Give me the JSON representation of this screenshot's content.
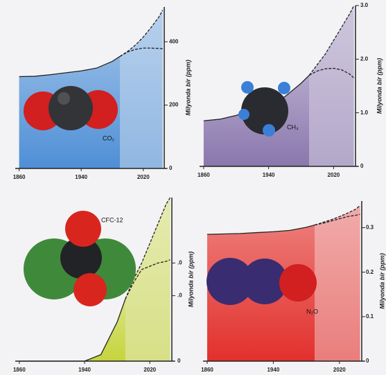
{
  "chart_data": [
    {
      "type": "area",
      "label": "CO₂",
      "y_label": "Milyonda bir (ppm)",
      "color": "#4f8fd6",
      "xlim": [
        1855,
        2047
      ],
      "ylim": [
        0,
        510
      ],
      "xticks": [
        1860,
        1940,
        2020
      ],
      "yticks": [
        0,
        200,
        400
      ],
      "x": [
        1860,
        1880,
        1900,
        1920,
        1940,
        1960,
        1980,
        1990,
        2000,
        2010,
        2020,
        2030,
        2040,
        2045
      ],
      "series": [
        {
          "values": [
            290,
            291,
            296,
            302,
            308,
            317,
            338,
            354,
            null,
            null,
            null,
            null,
            null,
            null
          ]
        },
        {
          "values": [
            null,
            null,
            null,
            null,
            null,
            null,
            null,
            354,
            370,
            390,
            415,
            445,
            478,
            500
          ],
          "dashed": true
        },
        {
          "values": [
            null,
            null,
            null,
            null,
            null,
            null,
            null,
            354,
            368,
            376,
            380,
            380,
            379,
            378
          ],
          "dashed": true
        }
      ]
    },
    {
      "type": "area",
      "label": "CH₄",
      "y_label": "Milyonda bir (ppm)",
      "color": "#8a77ad",
      "xlim": [
        1855,
        2047
      ],
      "ylim": [
        0,
        3.0
      ],
      "xticks": [
        1860,
        1940,
        2020
      ],
      "yticks": [
        0,
        {
          "value": 1,
          "label": "1.0"
        },
        {
          "value": 2,
          "label": "2.0"
        },
        {
          "value": 3,
          "label": "3.0"
        }
      ],
      "x": [
        1860,
        1880,
        1900,
        1920,
        1940,
        1960,
        1980,
        1990,
        2000,
        2010,
        2020,
        2030,
        2040,
        2045
      ],
      "series": [
        {
          "values": [
            0.85,
            0.88,
            0.95,
            1.05,
            1.15,
            1.3,
            1.55,
            1.7,
            null,
            null,
            null,
            null,
            null,
            null
          ]
        },
        {
          "values": [
            null,
            null,
            null,
            null,
            null,
            null,
            null,
            1.7,
            1.9,
            2.1,
            2.35,
            2.6,
            2.85,
            3.0
          ],
          "dashed": true
        },
        {
          "values": [
            null,
            null,
            null,
            null,
            null,
            null,
            null,
            1.7,
            1.78,
            1.82,
            1.83,
            1.8,
            1.72,
            1.65
          ],
          "dashed": true
        }
      ]
    },
    {
      "type": "area",
      "label": "CFC-12",
      "y_label": "Milyonda bir (ppm)",
      "color": "#c5d43c",
      "xlim": [
        1855,
        2047
      ],
      "ylim": [
        0,
        5
      ],
      "xticks": [
        1860,
        1940,
        2020
      ],
      "yticks": [
        0,
        {
          "value": 2,
          "label": ".0"
        },
        {
          "value": 3,
          "label": ".0"
        }
      ],
      "x": [
        1860,
        1880,
        1900,
        1920,
        1940,
        1960,
        1980,
        1990,
        2000,
        2010,
        2020,
        2030,
        2040,
        2045
      ],
      "series": [
        {
          "values": [
            0,
            0,
            0,
            0,
            0,
            0.2,
            1.2,
            1.9,
            null,
            null,
            null,
            null,
            null,
            null
          ]
        },
        {
          "values": [
            null,
            null,
            null,
            null,
            null,
            null,
            null,
            1.9,
            2.5,
            3.0,
            3.6,
            4.2,
            4.8,
            5.0
          ],
          "dashed": true
        },
        {
          "values": [
            null,
            null,
            null,
            null,
            null,
            null,
            null,
            1.9,
            2.4,
            2.8,
            2.9,
            3.0,
            3.05,
            3.1
          ],
          "dashed": true
        }
      ]
    },
    {
      "type": "area",
      "label": "N₂O",
      "y_label": "Milyonda bir (ppm)",
      "color": "#e2302c",
      "xlim": [
        1855,
        2047
      ],
      "ylim": [
        0,
        0.36
      ],
      "xticks": [
        1860,
        1940,
        2020
      ],
      "yticks": [
        0,
        0.1,
        0.2,
        0.3
      ],
      "x": [
        1860,
        1880,
        1900,
        1920,
        1940,
        1960,
        1980,
        1990,
        2000,
        2010,
        2020,
        2030,
        2040,
        2045
      ],
      "series": [
        {
          "values": [
            0.285,
            0.286,
            0.287,
            0.289,
            0.291,
            0.294,
            0.301,
            0.306,
            null,
            null,
            null,
            null,
            null,
            null
          ]
        },
        {
          "values": [
            null,
            null,
            null,
            null,
            null,
            null,
            null,
            0.306,
            0.312,
            0.318,
            0.325,
            0.333,
            0.342,
            0.35
          ],
          "dashed": true
        },
        {
          "values": [
            null,
            null,
            null,
            null,
            null,
            null,
            null,
            0.306,
            0.31,
            0.315,
            0.32,
            0.325,
            0.328,
            0.33
          ],
          "dashed": true
        }
      ]
    }
  ]
}
